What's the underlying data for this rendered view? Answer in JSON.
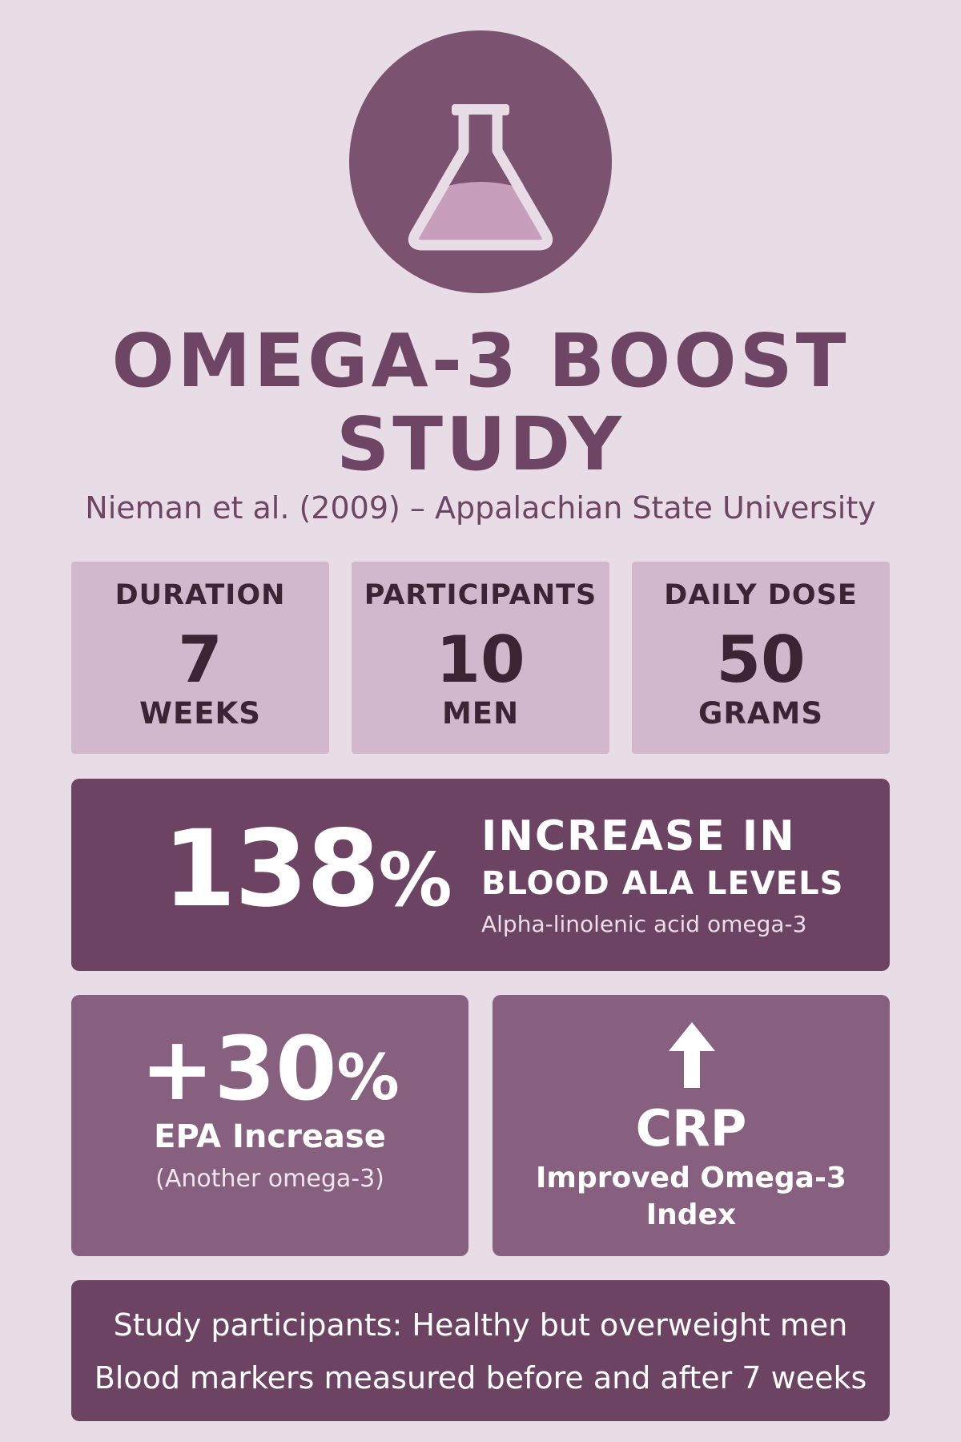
{
  "header": {
    "title_line1": "OMEGA-3 BOOST",
    "title_line2": "STUDY",
    "subtitle": "Nieman et al. (2009) – Appalachian State University"
  },
  "stats": [
    {
      "label": "DURATION",
      "value": "7",
      "unit": "WEEKS"
    },
    {
      "label": "PARTICIPANTS",
      "value": "10",
      "unit": "MEN"
    },
    {
      "label": "DAILY DOSE",
      "value": "50",
      "unit": "GRAMS"
    }
  ],
  "highlight": {
    "number": "138",
    "percent": "%",
    "heading_line1": "INCREASE IN",
    "heading_line2": "BLOOD ALA LEVELS",
    "subtext": "Alpha-linolenic acid omega-3"
  },
  "cards": {
    "epa": {
      "number": "+30",
      "percent": "%",
      "caption": "EPA Increase",
      "subcaption": "(Another omega-3)"
    },
    "crp": {
      "heading": "CRP",
      "caption_line1": "Improved Omega-3",
      "caption_line2": "Index"
    }
  },
  "footer": {
    "line1": "Study participants: Healthy but overweight men",
    "line2": "Blood markers measured before and after 7 weeks"
  },
  "icons": {
    "logo": "flask-icon",
    "crp": "arrow-up-icon"
  },
  "colors": {
    "background": "#e8dce7",
    "primary": "#6d4363",
    "card": "#87607f",
    "stat_box": "#d2b8cd"
  }
}
